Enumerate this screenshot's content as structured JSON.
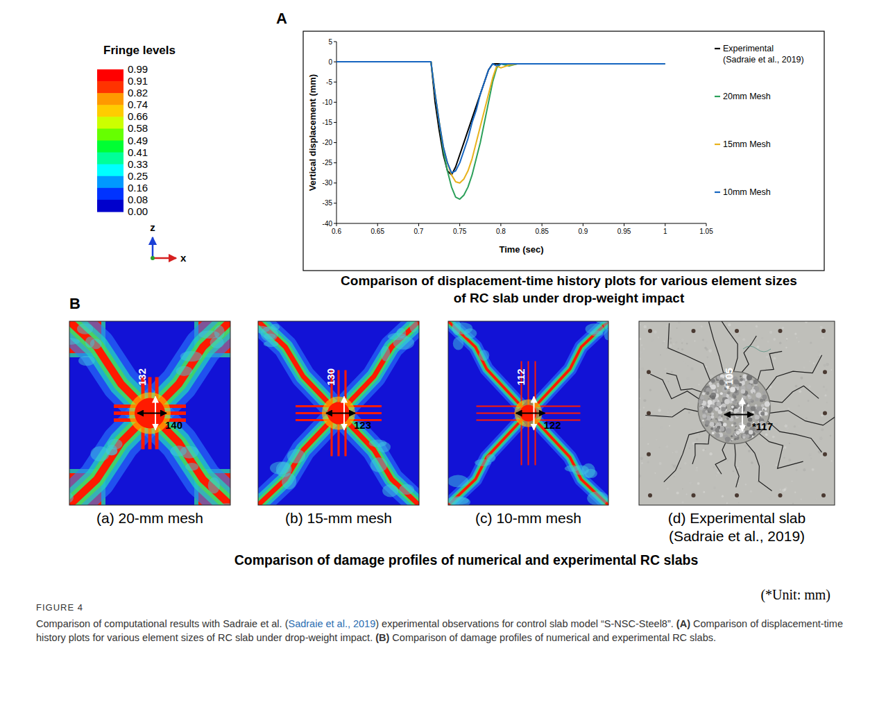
{
  "colorbar": {
    "title": "Fringe levels",
    "levels": [
      0.99,
      0.91,
      0.82,
      0.74,
      0.66,
      0.58,
      0.49,
      0.41,
      0.33,
      0.25,
      0.16,
      0.08,
      {
        "value": 0,
        "label": "0.00"
      }
    ],
    "colors": [
      "#ff0000",
      "#ff3300",
      "#ff9900",
      "#ffcc00",
      "#ccff00",
      "#66ff00",
      "#00ff33",
      "#00ff99",
      "#00ffff",
      "#0099ff",
      "#0033ff",
      "#0000cc"
    ]
  },
  "triad": {
    "vertical": "z",
    "horizontal": "x"
  },
  "panel_a": {
    "letter": "A"
  },
  "chart_data": {
    "type": "line",
    "title": "Comparison of displacement-time history plots for various element sizes of RC slab under drop-weight impact",
    "x_label": "Time (sec)",
    "y_label": "Vertical displacement (mm)",
    "x": [
      0.6,
      0.7,
      0.715,
      0.72,
      0.725,
      0.73,
      0.735,
      0.74,
      0.745,
      0.75,
      0.755,
      0.76,
      0.765,
      0.77,
      0.775,
      0.78,
      0.785,
      0.79,
      0.795,
      0.8,
      0.81,
      0.82,
      0.83,
      0.85,
      0.9,
      1.0
    ],
    "series": [
      {
        "name": "Experimental (Sadraie et al., 2019)",
        "color": "#000000",
        "values": [
          0,
          0,
          0,
          -10,
          -17,
          -23,
          -27,
          -28,
          -26,
          -23,
          -20,
          -17,
          -14,
          -11,
          -8,
          -5,
          -2,
          -0.5,
          -0.5,
          -0.5,
          -0.5,
          -0.5,
          -0.5,
          -0.5,
          -0.5,
          -0.5
        ]
      },
      {
        "name": "20mm Mesh",
        "color": "#2ca05a",
        "values": [
          0,
          0,
          0,
          -8,
          -15,
          -22,
          -27,
          -31,
          -33.5,
          -34,
          -33,
          -31,
          -28,
          -24,
          -20,
          -15,
          -10,
          -5,
          -1.5,
          -0.5,
          -1,
          -0.5,
          -0.5,
          -0.5,
          -0.5,
          -0.5
        ]
      },
      {
        "name": "15mm Mesh",
        "color": "#e8b21c",
        "values": [
          0,
          0,
          0,
          -8,
          -15,
          -21,
          -25,
          -28,
          -29.7,
          -30,
          -29,
          -27,
          -24,
          -20,
          -16,
          -12,
          -8,
          -4,
          -1,
          -1.5,
          -0.8,
          -0.5,
          -0.5,
          -0.5,
          -0.5,
          -0.5
        ]
      },
      {
        "name": "10mm Mesh",
        "color": "#1565c0",
        "values": [
          0,
          0,
          0,
          -8,
          -15,
          -21,
          -25,
          -27.5,
          -27,
          -25,
          -22,
          -19,
          -15,
          -12,
          -8,
          -5,
          -2,
          -0.5,
          -1,
          -0.5,
          -0.5,
          -0.5,
          -0.5,
          -0.5,
          -0.5,
          -0.5
        ]
      }
    ],
    "xlim": [
      0.6,
      1.05
    ],
    "ylim": [
      -40,
      5
    ],
    "xticks": [
      0.6,
      0.65,
      0.7,
      0.75,
      0.8,
      0.85,
      0.9,
      0.95,
      1,
      1.05
    ],
    "yticks": [
      -40,
      -35,
      -30,
      -25,
      -20,
      -15,
      -10,
      -5,
      0,
      5
    ],
    "legend": "right",
    "grid": false
  },
  "panel_b": {
    "letter": "B",
    "title": "Comparison of damage profiles of numerical and experimental RC slabs",
    "panels": [
      {
        "label": "(a) 20-mm mesh",
        "vertical": 132,
        "horizontal": 140
      },
      {
        "label": "(b) 15-mm mesh",
        "vertical": 130,
        "horizontal": 123
      },
      {
        "label": "(c) 10-mm mesh",
        "vertical": 112,
        "horizontal": 122
      },
      {
        "label": "(d) Experimental slab",
        "citation": "(Sadraie et al., 2019)",
        "vertical": {
          "value": 105,
          "label": "*105"
        },
        "horizontal": {
          "value": 117,
          "label": "*117"
        }
      }
    ],
    "unit_note": "(*Unit: mm)"
  },
  "caption": {
    "heading": "FIGURE 4",
    "segments": [
      {
        "text": "Comparison of computational results with Sadraie et al. ("
      },
      {
        "text": "Sadraie et al., 2019",
        "link": true
      },
      {
        "text": ") experimental observations for control slab model “S-NSC-Steel8”. "
      },
      {
        "text": "(A)",
        "bold": true
      },
      {
        "text": " Comparison of displacement-time history plots for various element sizes of RC slab under drop-weight impact. "
      },
      {
        "text": "(B)",
        "bold": true
      },
      {
        "text": " Comparison of damage profiles of numerical and experimental RC slabs."
      }
    ]
  }
}
